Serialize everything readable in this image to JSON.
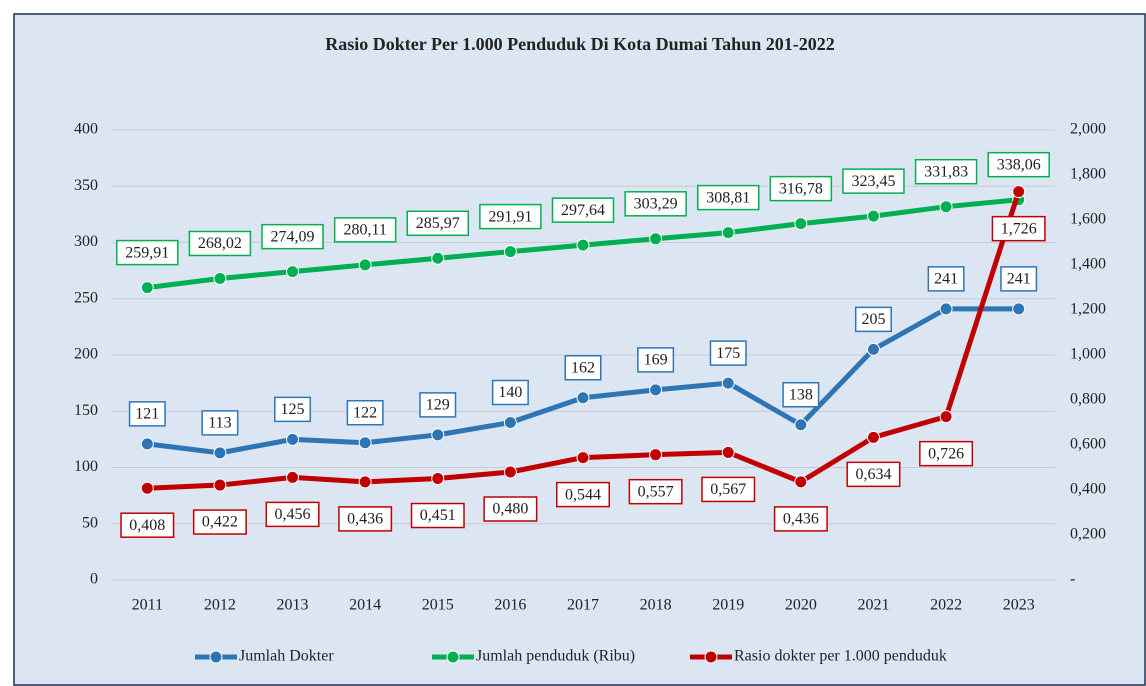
{
  "chart_data": {
    "type": "line",
    "title": "Rasio Dokter Per 1.000 Penduduk  Di Kota Dumai Tahun 201-2022",
    "categories": [
      "2011",
      "2012",
      "2013",
      "2014",
      "2015",
      "2016",
      "2017",
      "2018",
      "2019",
      "2020",
      "2021",
      "2022",
      "2023"
    ],
    "series": [
      {
        "name": "Jumlah Dokter",
        "color": "#2e75b6",
        "values": [
          121,
          113,
          125,
          122,
          129,
          140,
          162,
          169,
          175,
          138,
          205,
          241,
          241
        ]
      },
      {
        "name": "Jumlah penduduk (Ribu)",
        "color": "#00b050",
        "values": [
          259.91,
          268.02,
          274.09,
          280.11,
          285.97,
          291.91,
          297.64,
          303.29,
          308.81,
          316.78,
          323.45,
          331.83,
          338.06
        ],
        "value_labels": [
          "259,91",
          "268,02",
          "274,09",
          "280,11",
          "285,97",
          "291,91",
          "297,64",
          "303,29",
          "308,81",
          "316,78",
          "323,45",
          "331,83",
          "338,06"
        ]
      },
      {
        "name": "Rasio dokter per 1.000 penduduk",
        "color": "#c00000",
        "axis": "y2",
        "values": [
          0.408,
          0.422,
          0.456,
          0.436,
          0.451,
          0.48,
          0.544,
          0.557,
          0.567,
          0.436,
          0.634,
          0.726,
          1.726
        ],
        "value_labels": [
          "0,408",
          "0,422",
          "0,456",
          "0,436",
          "0,451",
          "0,480",
          "0,544",
          "0,557",
          "0,567",
          "0,436",
          "0,634",
          "0,726",
          "1,726"
        ]
      }
    ],
    "ylim": [
      0,
      400
    ],
    "yticks": [
      0,
      50,
      100,
      150,
      200,
      250,
      300,
      350,
      400
    ],
    "y2lim": [
      0,
      2
    ],
    "y2ticks": [
      {
        "value": 0,
        "label": "-"
      },
      {
        "value": 0.2,
        "label": "0,200"
      },
      {
        "value": 0.4,
        "label": "0,400"
      },
      {
        "value": 0.6,
        "label": "0,600"
      },
      {
        "value": 0.8,
        "label": "0,800"
      },
      {
        "value": 1.0,
        "label": "1,000"
      },
      {
        "value": 1.2,
        "label": "1,200"
      },
      {
        "value": 1.4,
        "label": "1,400"
      },
      {
        "value": 1.6,
        "label": "1,600"
      },
      {
        "value": 1.8,
        "label": "1,800"
      },
      {
        "value": 2.0,
        "label": "2,000"
      }
    ],
    "grid": true,
    "legend": "bottom"
  }
}
